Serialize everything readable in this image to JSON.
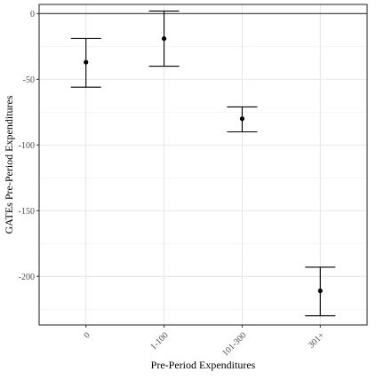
{
  "chart_data": {
    "type": "scatter",
    "subtype": "point-with-error-bars",
    "xlabel": "Pre-Period Expenditures",
    "ylabel": "GATEs Pre-Period Expenditures",
    "categories": [
      "0",
      "1-100",
      "101-300",
      "301+"
    ],
    "points": [
      {
        "category": "0",
        "estimate": -37,
        "lower": -56,
        "upper": -19
      },
      {
        "category": "1-100",
        "estimate": -19,
        "lower": -40,
        "upper": 2
      },
      {
        "category": "101-300",
        "estimate": -80,
        "lower": -90,
        "upper": -71
      },
      {
        "category": "301+",
        "estimate": -211,
        "lower": -230,
        "upper": -193
      }
    ],
    "yticks": [
      0,
      -50,
      -100,
      -150,
      -200
    ],
    "ylim": [
      -237,
      7
    ],
    "reference_line": 0,
    "grid": true,
    "xtick_rotation": 45
  }
}
